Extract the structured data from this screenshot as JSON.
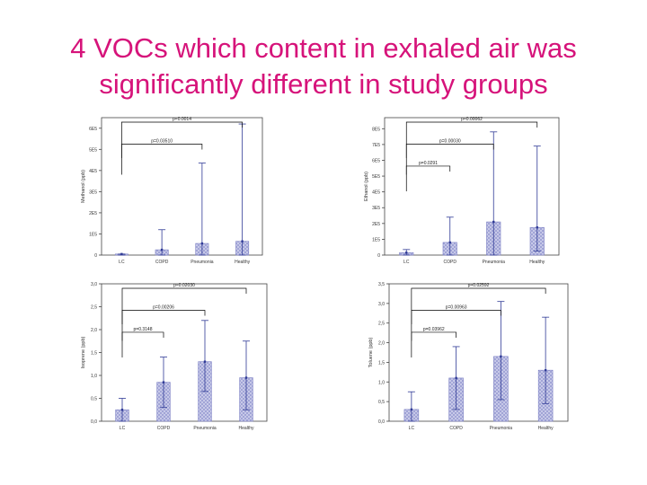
{
  "slide": {
    "title_line1": "4 VOCs which content in exhaled air was",
    "title_line2": "significantly different in study groups"
  },
  "colors": {
    "title": "#d6137a",
    "bar_fill": "#c7c9e8",
    "bar_stroke": "#7b7fc4",
    "error_bar": "#2f3a96",
    "bracket": "#000000"
  },
  "chart_data": [
    {
      "type": "bar",
      "id": "methanol",
      "ylabel": "Methanol (ppb)",
      "categories": [
        "LC",
        "COPD",
        "Pneumonia",
        "Healthy"
      ],
      "values": [
        5000,
        25000,
        55000,
        65000
      ],
      "error_low": [
        0,
        0,
        0,
        0
      ],
      "error_high": [
        5000,
        120000,
        435000,
        620000
      ],
      "ylim": [
        0,
        650000
      ],
      "yticks": [
        0,
        100000,
        200000,
        300000,
        400000,
        500000,
        600000
      ],
      "ytick_labels": [
        "0",
        "1E5",
        "2E5",
        "3E5",
        "4E5",
        "5E5",
        "6E5"
      ],
      "brackets": [
        {
          "label": "p=0.0014",
          "from": 0,
          "to": 3
        },
        {
          "label": "p=0.03510",
          "from": 0,
          "to": 2
        }
      ]
    },
    {
      "type": "bar",
      "id": "ethanol",
      "ylabel": "Ethanol (ppb)",
      "categories": [
        "LC",
        "COPD",
        "Pneumonia",
        "Healthy"
      ],
      "values": [
        15000,
        80000,
        210000,
        175000
      ],
      "error_low": [
        0,
        0,
        0,
        25000
      ],
      "error_high": [
        35000,
        240000,
        780000,
        690000
      ],
      "ylim": [
        0,
        870000
      ],
      "yticks": [
        0,
        100000,
        200000,
        300000,
        400000,
        500000,
        600000,
        700000,
        800000
      ],
      "ytick_labels": [
        "0",
        "1E5",
        "2E5",
        "3E5",
        "4E5",
        "5E5",
        "6E5",
        "7E5",
        "8E5"
      ],
      "brackets": [
        {
          "label": "p=0.00062",
          "from": 0,
          "to": 3
        },
        {
          "label": "p=0.00030",
          "from": 0,
          "to": 2
        },
        {
          "label": "p=0.0291",
          "from": 0,
          "to": 1
        }
      ]
    },
    {
      "type": "bar",
      "id": "isoprene",
      "ylabel": "Isoprene (ppb)",
      "categories": [
        "LC",
        "COPD",
        "Pneumonia",
        "Healthy"
      ],
      "values": [
        0.25,
        0.85,
        1.3,
        0.95
      ],
      "error_low": [
        0,
        0.3,
        0.65,
        0.25
      ],
      "error_high": [
        0.5,
        1.4,
        2.2,
        1.75
      ],
      "ylim": [
        0,
        3.0
      ],
      "yticks": [
        0,
        0.5,
        1.0,
        1.5,
        2.0,
        2.5,
        3.0
      ],
      "ytick_labels": [
        "0,0",
        "0,5",
        "1,0",
        "1,5",
        "2,0",
        "2,5",
        "3,0"
      ],
      "brackets": [
        {
          "label": "p=0.02030",
          "from": 0,
          "to": 3
        },
        {
          "label": "p=0.00206",
          "from": 0,
          "to": 2
        },
        {
          "label": "p=0.3148",
          "from": 0,
          "to": 1
        }
      ]
    },
    {
      "type": "bar",
      "id": "toluene",
      "ylabel": "Toluene (ppb)",
      "categories": [
        "LC",
        "COPD",
        "Pneumonia",
        "Healthy"
      ],
      "values": [
        0.3,
        1.1,
        1.65,
        1.3
      ],
      "error_low": [
        0,
        0.3,
        0.55,
        0.45
      ],
      "error_high": [
        0.75,
        1.9,
        3.05,
        2.65
      ],
      "ylim": [
        0,
        3.5
      ],
      "yticks": [
        0,
        0.5,
        1.0,
        1.5,
        2.0,
        2.5,
        3.0,
        3.5
      ],
      "ytick_labels": [
        "0,0",
        "0,5",
        "1,0",
        "1,5",
        "2,0",
        "2,5",
        "3,0",
        "3,5"
      ],
      "brackets": [
        {
          "label": "p=0.02592",
          "from": 0,
          "to": 3
        },
        {
          "label": "p=0.00963",
          "from": 0,
          "to": 2
        },
        {
          "label": "p=0.03962",
          "from": 0,
          "to": 1
        }
      ]
    }
  ]
}
